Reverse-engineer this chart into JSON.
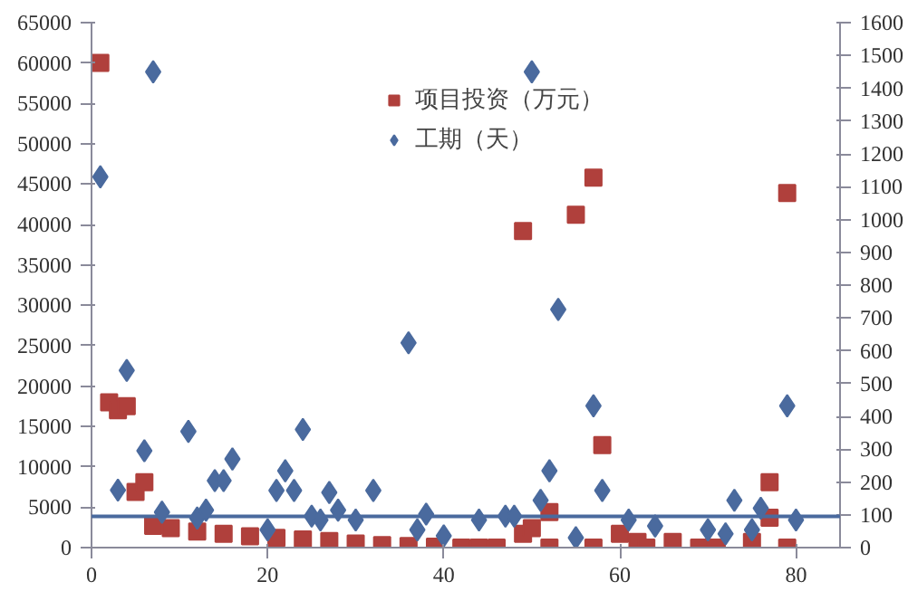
{
  "chart_data": {
    "type": "scatter",
    "xlim": [
      0,
      85
    ],
    "xticks": [
      0,
      20,
      40,
      60,
      80
    ],
    "ylim": [
      0,
      65000
    ],
    "yticks": [
      0,
      5000,
      10000,
      15000,
      20000,
      25000,
      30000,
      35000,
      40000,
      45000,
      50000,
      55000,
      60000,
      65000
    ],
    "y2lim": [
      0,
      1600
    ],
    "y2ticks": [
      0,
      100,
      200,
      300,
      400,
      500,
      600,
      700,
      800,
      900,
      1000,
      1100,
      1200,
      1300,
      1400,
      1500,
      1600
    ],
    "grid": false,
    "legend": "top",
    "series": [
      {
        "name": "项目投资（万元）",
        "color": "#b0403c",
        "marker": "square",
        "x": [
          1,
          2,
          3,
          4,
          5,
          6,
          7,
          9,
          12,
          15,
          18,
          21,
          24,
          27,
          30,
          33,
          36,
          39,
          42,
          44,
          46,
          49,
          49,
          50,
          52,
          52,
          55,
          57,
          57,
          58,
          60,
          62,
          63,
          66,
          69,
          71,
          75,
          77,
          77,
          79,
          79
        ],
        "values": [
          60000,
          18000,
          17000,
          17500,
          6900,
          8100,
          2700,
          2400,
          2000,
          1700,
          1400,
          1200,
          1000,
          800,
          500,
          300,
          200,
          100,
          0,
          0,
          0,
          39200,
          1700,
          2400,
          4400,
          0,
          41200,
          45800,
          0,
          12700,
          1700,
          700,
          0,
          700,
          0,
          0,
          700,
          3700,
          8100,
          43900,
          0
        ]
      },
      {
        "name": "工期（天）",
        "color": "#4a6a9e",
        "marker": "diamond",
        "axis": "y2",
        "x": [
          1,
          3,
          4,
          6,
          7,
          8,
          11,
          12,
          13,
          14,
          15,
          16,
          20,
          21,
          22,
          23,
          24,
          25,
          26,
          27,
          28,
          30,
          32,
          36,
          37,
          38,
          40,
          44,
          47,
          48,
          50,
          51,
          52,
          53,
          55,
          57,
          58,
          61,
          64,
          70,
          72,
          73,
          75,
          76,
          79,
          80
        ],
        "values": [
          1130,
          175,
          540,
          295,
          1450,
          108,
          354,
          90,
          114,
          204,
          204,
          270,
          54,
          174,
          234,
          174,
          360,
          96,
          84,
          168,
          114,
          84,
          174,
          624,
          54,
          102,
          36,
          84,
          96,
          96,
          1450,
          144,
          234,
          726,
          30,
          432,
          174,
          84,
          66,
          54,
          42,
          144,
          54,
          120,
          432,
          84
        ]
      }
    ],
    "ref_lines": [
      {
        "axis": "y2",
        "value": 95,
        "color": "#4a6a9e"
      }
    ]
  }
}
